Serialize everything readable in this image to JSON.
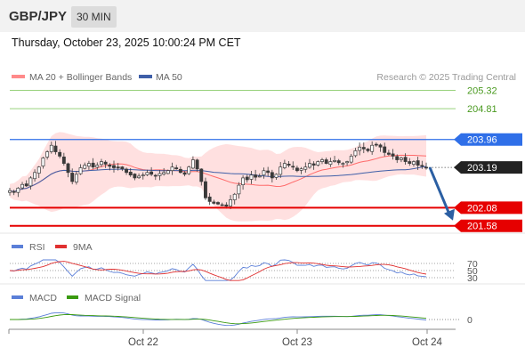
{
  "header": {
    "pair": "GBP/JPY",
    "timeframe": "30 MIN"
  },
  "timestamp": "Thursday, October 23, 2025 10:00:24 PM CET",
  "legend": {
    "ma20": "MA 20 + Bollinger Bands",
    "ma50": "MA 50",
    "credit": "Research © 2025 Trading Central"
  },
  "colors": {
    "candle": "#3a3a3a",
    "ma20": "#ff6b6b",
    "bollinger_fill": "#ffd6d6",
    "ma50": "#3f5fa8",
    "target_green": "#5ab82f",
    "pivot_blue": "#2f6fe8",
    "support_red": "#e60000",
    "last_price": "#222222",
    "arrow": "#2b5fa3",
    "rsi": "#5b7fd8",
    "rsi_ma": "#e03030",
    "macd": "#5b7fd8",
    "macd_signal": "#3a9a10"
  },
  "chart_data": {
    "type": "candlestick",
    "instrument": "GBP/JPY",
    "timeframe": "30 MIN",
    "x_ticks": [
      "Oct 22",
      "Oct 23",
      "Oct 24"
    ],
    "ylim": [
      201.45,
      205.45
    ],
    "price_levels": [
      {
        "label": "205.32",
        "value": 205.32,
        "kind": "target"
      },
      {
        "label": "204.81",
        "value": 204.81,
        "kind": "target"
      },
      {
        "label": "203.96",
        "value": 203.96,
        "kind": "pivot"
      },
      {
        "label": "203.19",
        "value": 203.19,
        "kind": "last"
      },
      {
        "label": "202.08",
        "value": 202.08,
        "kind": "support"
      },
      {
        "label": "201.58",
        "value": 201.58,
        "kind": "support"
      }
    ],
    "forecast_arrow": {
      "from": 203.19,
      "to": 201.58
    },
    "close_series": [
      202.55,
      202.5,
      202.62,
      202.72,
      202.68,
      202.9,
      203.05,
      203.2,
      203.45,
      203.62,
      203.8,
      203.62,
      203.5,
      203.3,
      203.05,
      202.8,
      203.0,
      203.18,
      203.25,
      203.3,
      203.2,
      203.25,
      203.35,
      203.28,
      203.22,
      203.18,
      203.2,
      203.15,
      203.05,
      202.98,
      202.9,
      202.95,
      202.98,
      203.05,
      203.0,
      202.95,
      203.02,
      203.05,
      203.1,
      203.2,
      203.15,
      203.05,
      203.0,
      203.2,
      203.4,
      203.15,
      202.8,
      202.35,
      202.25,
      202.2,
      202.18,
      202.15,
      202.12,
      202.3,
      202.45,
      202.7,
      202.9,
      202.85,
      202.98,
      202.92,
      202.95,
      203.1,
      203.05,
      202.9,
      203.0,
      203.2,
      203.3,
      203.25,
      203.2,
      203.1,
      203.15,
      203.2,
      203.3,
      203.25,
      203.35,
      203.4,
      203.3,
      203.35,
      203.38,
      203.32,
      203.3,
      203.35,
      203.5,
      203.65,
      203.75,
      203.7,
      203.65,
      203.8,
      203.82,
      203.75,
      203.6,
      203.55,
      203.5,
      203.4,
      203.45,
      203.35,
      203.3,
      203.35,
      203.25,
      203.22,
      203.19
    ],
    "rsi": {
      "levels": [
        70,
        50,
        30
      ],
      "level_labels": [
        "70",
        "50",
        "30"
      ],
      "series": [
        {
          "name": "RSI"
        },
        {
          "name": "9MA"
        }
      ]
    },
    "macd": {
      "zero_label": "0",
      "series": [
        {
          "name": "MACD"
        },
        {
          "name": "MACD Signal"
        }
      ]
    }
  },
  "panels": {
    "rsi_label": "RSI",
    "rsi_ma_label": "9MA",
    "macd_label": "MACD",
    "macd_signal_label": "MACD Signal"
  }
}
